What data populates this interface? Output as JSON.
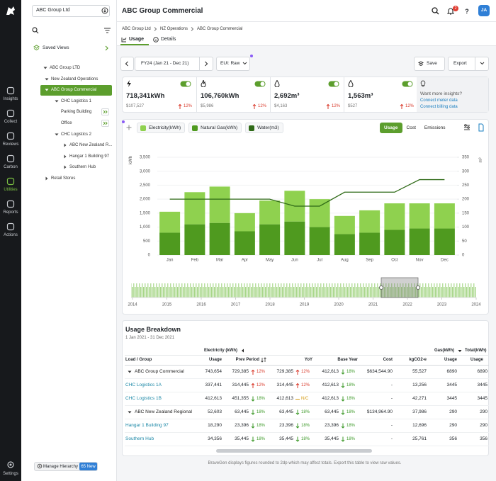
{
  "sidebar": {
    "nav": [
      "Insights",
      "Collect",
      "Reviews",
      "Carbon",
      "Utilities",
      "Reports",
      "Actions"
    ],
    "active": 4,
    "settings": "Settings"
  },
  "tree": {
    "search": "ABC Group Ltd",
    "saved_views": "Saved Views",
    "items": [
      {
        "label": "ABC Group LTD",
        "depth": 0,
        "caret": "down"
      },
      {
        "label": "New Zealand Operations",
        "depth": 1,
        "caret": "down"
      },
      {
        "label": "ABC Group Commercial",
        "depth": 1,
        "caret": "down",
        "selected": true
      },
      {
        "label": "CHC Logistics 1",
        "depth": 2,
        "caret": "down"
      },
      {
        "label": "Parking Building",
        "depth": 2,
        "drill": true
      },
      {
        "label": "Office",
        "depth": 2,
        "drill": true
      },
      {
        "label": "CHC Logistics 2",
        "depth": 2,
        "caret": "down"
      },
      {
        "label": "ABC New Zealand R...",
        "depth": 3,
        "caret": "right"
      },
      {
        "label": "Hangar 1 Building 97",
        "depth": 3,
        "caret": "right"
      },
      {
        "label": "Southern Hub",
        "depth": 3,
        "caret": "right"
      },
      {
        "label": "Retail Stores",
        "depth": 1,
        "caret": "right"
      }
    ],
    "manage": "Manage Hierarchy",
    "new_badge": "65 New"
  },
  "header": {
    "title": "ABC Group Commercial",
    "notifications": "2",
    "help": "?",
    "avatar": "JA"
  },
  "breadcrumb": [
    "ABC Group Ltd",
    "NZ Operations",
    "ABC Group Commercial"
  ],
  "tabs": [
    "Usage",
    "Details"
  ],
  "toolbar": {
    "period": "FY24 (Jan 21 - Dec 21)",
    "eui": "EUI: Raw",
    "save": "Save",
    "export": "Export"
  },
  "kpis": [
    {
      "value": "718,341kWh",
      "cost": "$107,527",
      "change": "12%",
      "dir": "up"
    },
    {
      "value": "106,760kWh",
      "cost": "$5,986",
      "change": "12%",
      "dir": "up"
    },
    {
      "value": "2,692m³",
      "cost": "$4,163",
      "change": "12%",
      "dir": "up"
    },
    {
      "value": "1,563m³",
      "cost": "$527",
      "change": "12%",
      "dir": "up"
    }
  ],
  "insights": {
    "title": "Want more insights?",
    "links": [
      "Connect meter data",
      "Connect billing data"
    ]
  },
  "chart_views": [
    "Usage",
    "Cost",
    "Emissions"
  ],
  "chart_data": {
    "type": "bar",
    "stacked": true,
    "ylabel": "kWh",
    "y2label": "m³",
    "categories": [
      "Jan",
      "Feb",
      "Mar",
      "Apr",
      "May",
      "Jun",
      "Jul",
      "Aug",
      "Sep",
      "Oct",
      "Nov",
      "Dec"
    ],
    "series": [
      {
        "name": "Electricity(kWh)",
        "color": "#8fd14f",
        "values": [
          750,
          1150,
          1300,
          650,
          850,
          1100,
          1000,
          650,
          800,
          950,
          900,
          900
        ]
      },
      {
        "name": "Natural Gas(kWh)",
        "color": "#4f9a1f",
        "values": [
          800,
          1100,
          1150,
          850,
          1100,
          1200,
          1000,
          750,
          800,
          900,
          950,
          950
        ]
      },
      {
        "name": "Water(m3)",
        "color": "#2f6a17",
        "type": "line",
        "axis": "y2",
        "values": [
          200,
          200,
          200,
          200,
          200,
          175,
          175,
          225,
          225,
          225,
          270,
          270
        ]
      }
    ],
    "ylim": [
      0,
      3500
    ],
    "yticks": [
      0,
      500,
      {
        "value": 1000,
        "label": "1,000"
      },
      {
        "value": 1500,
        "label": "1,500"
      },
      {
        "value": 2000,
        "label": "2,000"
      },
      {
        "value": 2500,
        "label": "2,500"
      },
      {
        "value": 3000,
        "label": "3,000"
      },
      {
        "value": 3500,
        "label": "3,500"
      }
    ],
    "y2lim": [
      0,
      350
    ],
    "y2ticks": [
      0,
      50,
      100,
      150,
      200,
      250,
      300,
      350
    ],
    "grid": true,
    "navigator": {
      "xlim": [
        2014,
        2024
      ],
      "xticks": [
        2014,
        2015,
        2016,
        2017,
        2018,
        2019,
        2020,
        2021,
        2022,
        2023,
        2024
      ]
    }
  },
  "table": {
    "title": "Usage Breakdown",
    "date": "1 Jan 2021 - 31 Dec 2021",
    "groups": [
      "Electricity (kWh)",
      "Gas(kWh)",
      "Total(kWh)"
    ],
    "columns": [
      "Load / Group",
      "Usage",
      "Prev Period",
      "YoY",
      "Base Year",
      "Cost",
      "kgCO2-e",
      "Usage",
      "Usage"
    ],
    "rows": [
      {
        "group": true,
        "cells": [
          "ABC Group Commercial",
          "743,654",
          {
            "value": "729,385",
            "change": "12%",
            "dir": "up"
          },
          {
            "value": "729,385",
            "change": "12%",
            "dir": "up"
          },
          {
            "value": "412,613",
            "change": "18%",
            "dir": "down"
          },
          "$634,544.90",
          "55,527",
          "6890",
          "6890"
        ]
      },
      {
        "cells": [
          "CHC Logistics 1A",
          "337,441",
          {
            "value": "314,445",
            "change": "12%",
            "dir": "up"
          },
          {
            "value": "314,445",
            "change": "12%",
            "dir": "up"
          },
          {
            "value": "412,613",
            "change": "18%",
            "dir": "down"
          },
          "-",
          "13,256",
          "3445",
          "3445"
        ]
      },
      {
        "cells": [
          "CHC Logistics 1B",
          "412,613",
          {
            "value": "451,355",
            "change": "18%",
            "dir": "down"
          },
          {
            "value": "412,613",
            "change": "N/C",
            "dir": "flat"
          },
          {
            "value": "412,613",
            "change": "18%",
            "dir": "down"
          },
          "-",
          "42,271",
          "3445",
          "3445"
        ]
      },
      {
        "group": true,
        "cells": [
          "ABC New Zealand Regional",
          "52,603",
          {
            "value": "63,445",
            "change": "18%",
            "dir": "down"
          },
          {
            "value": "63,445",
            "change": "18%",
            "dir": "down"
          },
          {
            "value": "63,445",
            "change": "18%",
            "dir": "down"
          },
          "$134,964.90",
          "37,986",
          "290",
          "290"
        ]
      },
      {
        "cells": [
          "Hangar 1 Building 97",
          "18,290",
          {
            "value": "23,396",
            "change": "18%",
            "dir": "down"
          },
          {
            "value": "23,396",
            "change": "18%",
            "dir": "down"
          },
          {
            "value": "23,396",
            "change": "18%",
            "dir": "down"
          },
          "-",
          "12,696",
          "290",
          "290"
        ]
      },
      {
        "cells": [
          "Southern Hub",
          "34,356",
          {
            "value": "35,445",
            "change": "18%",
            "dir": "down"
          },
          {
            "value": "35,445",
            "change": "18%",
            "dir": "down"
          },
          {
            "value": "35,445",
            "change": "18%",
            "dir": "down"
          },
          "-",
          "25,761",
          "356",
          "356"
        ]
      }
    ]
  },
  "footer_note": "BraveGen displays figures rounded to 2dp which may affect totals. Export this table to view raw values."
}
